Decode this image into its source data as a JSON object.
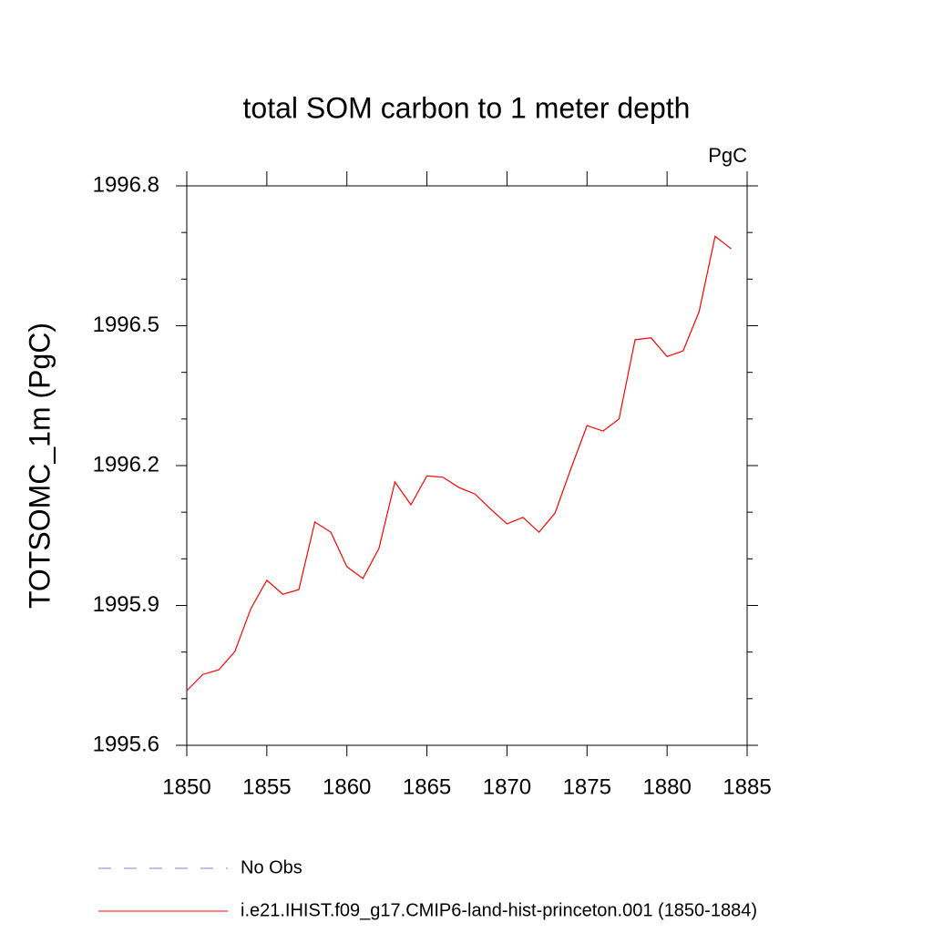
{
  "chart_data": {
    "type": "line",
    "title": "total SOM carbon to 1 meter depth",
    "units": "PgC",
    "y_label": "TOTSOMC_1m  (PgC)",
    "x": [
      1850,
      1851,
      1852,
      1853,
      1854,
      1855,
      1856,
      1857,
      1858,
      1859,
      1860,
      1861,
      1862,
      1863,
      1864,
      1865,
      1866,
      1867,
      1868,
      1869,
      1870,
      1871,
      1872,
      1873,
      1874,
      1875,
      1876,
      1877,
      1878,
      1879,
      1880,
      1881,
      1882,
      1883,
      1884
    ],
    "series": [
      {
        "name": "No Obs",
        "color": "#8a7fd0",
        "dash": true,
        "values": [
          null,
          null,
          null,
          null,
          null,
          null,
          null,
          null,
          null,
          null,
          null,
          null,
          null,
          null,
          null,
          null,
          null,
          null,
          null,
          null,
          null,
          null,
          null,
          null,
          null,
          null,
          null,
          null,
          null,
          null,
          null,
          null,
          null,
          null,
          null
        ]
      },
      {
        "name": "i.e21.IHIST.f09_g17.CMIP6-land-hist-princeton.001 (1850-1884)",
        "color": "#ff0000",
        "dash": false,
        "values": [
          1995.717,
          1995.752,
          1995.762,
          1995.801,
          1995.893,
          1995.954,
          1995.924,
          1995.934,
          1996.079,
          1996.057,
          1995.983,
          1995.958,
          1996.022,
          1996.165,
          1996.116,
          1996.178,
          1996.175,
          1996.153,
          1996.139,
          1996.106,
          1996.075,
          1996.089,
          1996.057,
          1996.098,
          1996.194,
          1996.286,
          1996.274,
          1996.3,
          1996.47,
          1996.474,
          1996.434,
          1996.446,
          1996.53,
          1996.692,
          1996.665
        ]
      }
    ],
    "xlim": [
      1850,
      1885
    ],
    "xticks": [
      1850,
      1855,
      1860,
      1865,
      1870,
      1875,
      1880,
      1885
    ],
    "ylim": [
      1995.6,
      1996.8
    ],
    "yticks": [
      1995.6,
      1995.9,
      1996.2,
      1996.5,
      1996.8
    ],
    "y_minor_step": 0.1,
    "grid": false
  }
}
